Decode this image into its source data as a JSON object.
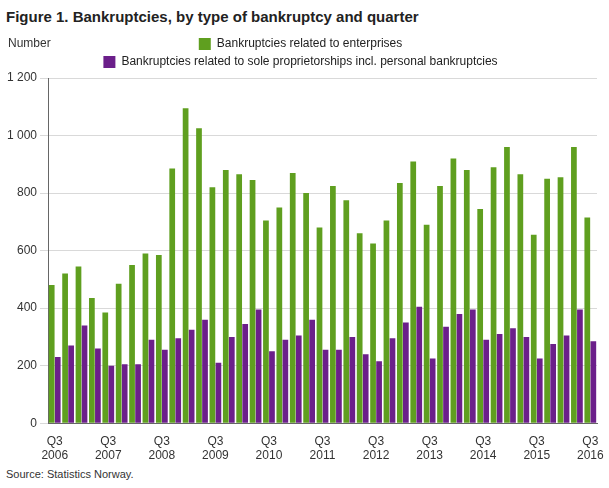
{
  "chart_data": {
    "type": "bar",
    "title": "Figure 1. Bankruptcies, by type of bankruptcy and quarter",
    "ylabel": "Number",
    "source": "Source: Statistics Norway.",
    "categories": [
      "Q3\n2006",
      null,
      null,
      null,
      "Q3\n2007",
      null,
      null,
      null,
      "Q3\n2008",
      null,
      null,
      null,
      "Q3\n2009",
      null,
      null,
      null,
      "Q3\n2010",
      null,
      null,
      null,
      "Q3\n2011",
      null,
      null,
      null,
      "Q3\n2012",
      null,
      null,
      null,
      "Q3\n2013",
      null,
      null,
      null,
      "Q3\n2014",
      null,
      null,
      null,
      "Q3\n2015",
      null,
      null,
      null,
      "Q3\n2016"
    ],
    "series": [
      {
        "name": "Bankruptcies related to enterprises",
        "color": "#5f9f1f",
        "values": [
          480,
          520,
          545,
          435,
          385,
          485,
          550,
          590,
          585,
          885,
          1095,
          1025,
          820,
          880,
          865,
          845,
          705,
          750,
          870,
          800,
          680,
          825,
          775,
          660,
          625,
          705,
          835,
          910,
          690,
          825,
          920,
          880,
          745,
          890,
          960,
          865,
          655,
          850,
          855,
          960,
          715
        ]
      },
      {
        "name": "Bankruptcies related to sole proprietorships incl. personal bankruptcies",
        "color": "#6b1f8a",
        "values": [
          230,
          270,
          340,
          260,
          200,
          205,
          205,
          290,
          255,
          295,
          325,
          360,
          210,
          300,
          345,
          395,
          250,
          290,
          305,
          360,
          255,
          255,
          300,
          240,
          215,
          295,
          350,
          405,
          225,
          335,
          380,
          395,
          290,
          310,
          330,
          300,
          225,
          275,
          305,
          395,
          285
        ]
      }
    ],
    "ylim": [
      0,
      1200
    ],
    "yticks": [
      0,
      200,
      400,
      600,
      800,
      {
        "value": 1000,
        "label": "1 000"
      },
      {
        "value": 1200,
        "label": "1 200"
      }
    ],
    "grid": true,
    "legend": "top"
  }
}
